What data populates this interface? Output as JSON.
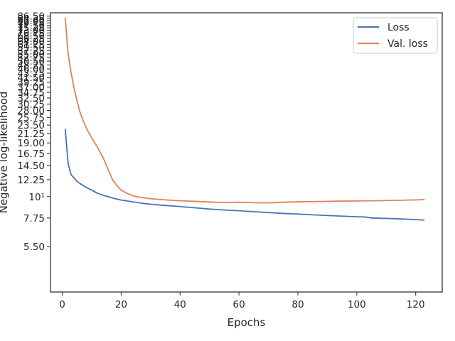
{
  "chart_data": {
    "type": "line",
    "xlabel": "Epochs",
    "ylabel": "Negative log-likelihood",
    "xlim": [
      -4,
      129
    ],
    "ylim": [
      3.2,
      90
    ],
    "y_scale": "log",
    "grid": false,
    "legend": "top-right",
    "x_ticks": [
      {
        "value": 0,
        "label": "0"
      },
      {
        "value": 20,
        "label": "20"
      },
      {
        "value": 40,
        "label": "40"
      },
      {
        "value": 60,
        "label": "60"
      },
      {
        "value": 80,
        "label": "80"
      },
      {
        "value": 100,
        "label": "100"
      },
      {
        "value": 120,
        "label": "120"
      }
    ],
    "y_ticks": [
      {
        "value": 5.5,
        "label": "5.50"
      },
      {
        "value": 7.75,
        "label": "7.75"
      },
      {
        "value": 10,
        "label": "10¹"
      },
      {
        "value": 12.25,
        "label": "12.25"
      },
      {
        "value": 14.5,
        "label": "14.50"
      },
      {
        "value": 16.75,
        "label": "16.75"
      },
      {
        "value": 19.0,
        "label": "19.00"
      },
      {
        "value": 21.25,
        "label": "21.25"
      },
      {
        "value": 23.5,
        "label": "23.50"
      },
      {
        "value": 25.75,
        "label": "25.75"
      },
      {
        "value": 28.0,
        "label": "28.00"
      },
      {
        "value": 30.25,
        "label": "30.25"
      },
      {
        "value": 32.5,
        "label": "32.50"
      },
      {
        "value": 34.75,
        "label": "34.75"
      },
      {
        "value": 37.0,
        "label": "37.00"
      },
      {
        "value": 39.25,
        "label": "39.25"
      },
      {
        "value": 41.5,
        "label": "41.50"
      },
      {
        "value": 43.75,
        "label": "43.75"
      },
      {
        "value": 46.0,
        "label": "46.00"
      },
      {
        "value": 48.25,
        "label": "48.25"
      },
      {
        "value": 50.5,
        "label": "50.50"
      },
      {
        "value": 52.75,
        "label": "52.75"
      },
      {
        "value": 55.0,
        "label": "55.00"
      },
      {
        "value": 57.25,
        "label": "57.25"
      },
      {
        "value": 59.5,
        "label": "59.50"
      },
      {
        "value": 61.75,
        "label": "61.75"
      },
      {
        "value": 64.0,
        "label": "64.00"
      },
      {
        "value": 66.25,
        "label": "66.25"
      },
      {
        "value": 68.5,
        "label": "68.50"
      },
      {
        "value": 70.75,
        "label": "70.75"
      },
      {
        "value": 73.0,
        "label": "73.00"
      },
      {
        "value": 75.25,
        "label": "75.25"
      },
      {
        "value": 77.5,
        "label": "77.50"
      },
      {
        "value": 79.75,
        "label": "79.75"
      },
      {
        "value": 82.0,
        "label": "82.00"
      },
      {
        "value": 84.25,
        "label": "84.25"
      },
      {
        "value": 86.5,
        "label": "86.50"
      }
    ],
    "series": [
      {
        "name": "Loss",
        "color": "#4c72b0",
        "x": [
          1,
          2,
          3,
          4,
          5,
          6,
          8,
          10,
          12,
          14,
          16,
          18,
          20,
          22,
          25,
          28,
          31,
          35,
          40,
          45,
          50,
          55,
          60,
          65,
          70,
          75,
          80,
          85,
          90,
          95,
          100,
          103,
          105,
          110,
          115,
          120,
          123
        ],
        "y": [
          22.5,
          14.8,
          13.0,
          12.5,
          12.0,
          11.7,
          11.2,
          10.8,
          10.4,
          10.15,
          9.95,
          9.75,
          9.6,
          9.5,
          9.35,
          9.2,
          9.1,
          9.0,
          8.88,
          8.75,
          8.62,
          8.52,
          8.45,
          8.35,
          8.27,
          8.18,
          8.12,
          8.05,
          7.98,
          7.92,
          7.86,
          7.84,
          7.75,
          7.71,
          7.66,
          7.6,
          7.55
        ]
      },
      {
        "name": "Val. loss",
        "color": "#dd8452",
        "x": [
          1,
          2,
          3,
          4,
          5,
          6,
          7,
          8,
          9,
          10,
          12,
          14,
          15,
          17,
          19,
          20,
          22,
          24,
          25,
          28,
          30,
          33,
          35,
          40,
          45,
          50,
          55,
          60,
          65,
          70,
          75,
          80,
          85,
          90,
          95,
          100,
          105,
          110,
          115,
          120,
          123
        ],
        "y": [
          85.0,
          55.0,
          44.0,
          36.5,
          31.5,
          27.5,
          25.0,
          23.0,
          21.5,
          20.2,
          18.0,
          15.8,
          14.5,
          12.3,
          11.2,
          10.8,
          10.4,
          10.1,
          10.0,
          9.85,
          9.75,
          9.68,
          9.62,
          9.52,
          9.45,
          9.38,
          9.32,
          9.35,
          9.3,
          9.28,
          9.35,
          9.4,
          9.42,
          9.45,
          9.48,
          9.5,
          9.52,
          9.55,
          9.58,
          9.62,
          9.65
        ]
      }
    ]
  }
}
